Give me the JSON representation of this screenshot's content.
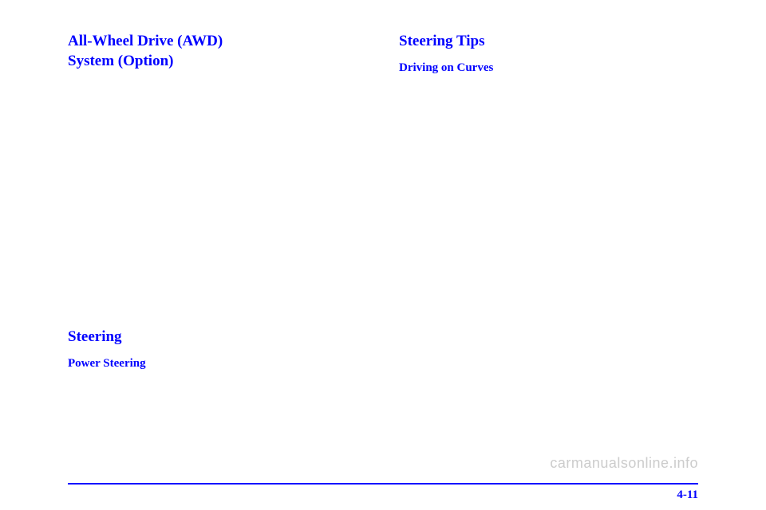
{
  "left_column": {
    "heading1_line1": "All-Wheel Drive (AWD)",
    "heading1_line2": "System (Option)",
    "heading2": "Steering",
    "subheading": "Power Steering"
  },
  "right_column": {
    "heading1": "Steering Tips",
    "subheading": "Driving on Curves"
  },
  "footer": {
    "watermark": "carmanualsonline.info",
    "page_number": "4-11"
  },
  "colors": {
    "heading_color": "#0000ff",
    "line_color": "#0000ff",
    "watermark_color": "#cccccc",
    "background": "#ffffff"
  },
  "typography": {
    "heading_main_size": 19,
    "heading_sub_size": 15,
    "page_num_size": 15,
    "watermark_size": 18
  }
}
